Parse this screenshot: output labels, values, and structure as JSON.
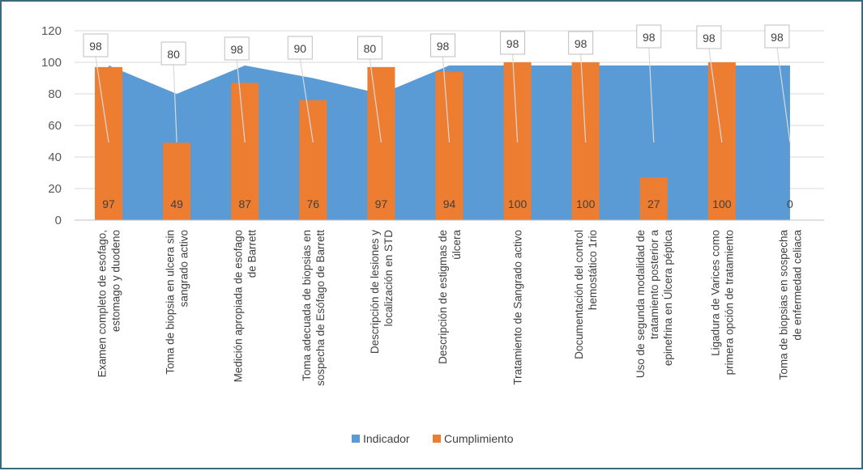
{
  "chart_data": {
    "type": "bar+area",
    "title": "",
    "xlabel": "",
    "ylabel": "",
    "ylim": [
      0,
      120
    ],
    "yticks": [
      0,
      20,
      40,
      60,
      80,
      100,
      120
    ],
    "grid": true,
    "legend_position": "bottom",
    "categories": [
      [
        "Examen completo de esofago,",
        "estomago y duodeno"
      ],
      [
        "Toma de biopsia en ulcera sin",
        "sangrado activo"
      ],
      [
        "Medición apropiada de esofago",
        "de Barrett"
      ],
      [
        "Toma adecuada de biopsias en",
        "sospecha de Esófago de Barrett"
      ],
      [
        "Descripción de lesiones y",
        "localización en STD"
      ],
      [
        "Descripción de estigmas de",
        "úlcera"
      ],
      [
        "Tratamiento de Sangrado activo"
      ],
      [
        "Documentación del control",
        "hemostático 1rio"
      ],
      [
        "Uso de segunda modalidad de",
        "tratamiento posterior a",
        "epinefrina en Úlcera péptica"
      ],
      [
        "Ligadura de Varices como",
        "primera opción de tratamiento"
      ],
      [
        "Toma de biopsias en sospecha",
        "de enfermedad celiaca"
      ]
    ],
    "series": [
      {
        "name": "Indicador",
        "type": "area",
        "color": "#5b9bd5",
        "values": [
          98,
          80,
          98,
          90,
          80,
          98,
          98,
          98,
          98,
          98,
          98
        ]
      },
      {
        "name": "Cumplimiento",
        "type": "bar",
        "color": "#ed7d31",
        "values": [
          97,
          49,
          87,
          76,
          97,
          94,
          100,
          100,
          27,
          100,
          0
        ]
      }
    ],
    "indicator_labels": [
      "98",
      "80",
      "98",
      "90",
      "80",
      "98",
      "98",
      "98",
      "98",
      "98",
      "98"
    ],
    "bar_labels": [
      "97",
      "49",
      "87",
      "76",
      "97",
      "94",
      "100",
      "100",
      "27",
      "100",
      "0"
    ]
  }
}
